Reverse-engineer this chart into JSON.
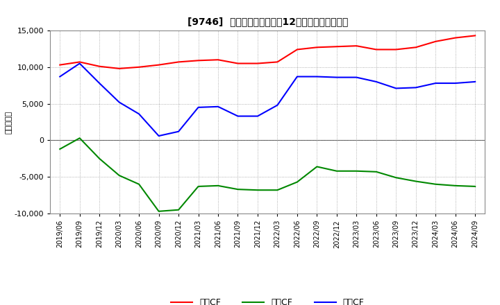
{
  "title": "[9746]  キャッシュフローの12か月移動合計の推移",
  "ylabel": "（百万円）",
  "ylim": [
    -10000,
    15000
  ],
  "yticks": [
    -10000,
    -5000,
    0,
    5000,
    10000,
    15000
  ],
  "background_color": "#ffffff",
  "grid_color": "#999999",
  "x_labels": [
    "2019/06",
    "2019/09",
    "2019/12",
    "2020/03",
    "2020/06",
    "2020/09",
    "2020/12",
    "2021/03",
    "2021/06",
    "2021/09",
    "2021/12",
    "2022/03",
    "2022/06",
    "2022/09",
    "2022/12",
    "2023/03",
    "2023/06",
    "2023/09",
    "2023/12",
    "2024/03",
    "2024/06",
    "2024/09"
  ],
  "series_order": [
    "営業CF",
    "投資CF",
    "フリCF"
  ],
  "series": {
    "営業CF": {
      "color": "#ff0000",
      "values": [
        10300,
        10700,
        10100,
        9800,
        10000,
        10300,
        10700,
        10900,
        11000,
        10500,
        10500,
        10700,
        12400,
        12700,
        12800,
        12900,
        12400,
        12400,
        12700,
        13500,
        14000,
        14300
      ]
    },
    "投資CF": {
      "color": "#008800",
      "values": [
        -1200,
        300,
        -2500,
        -4800,
        -6000,
        -9700,
        -9500,
        -6300,
        -6200,
        -6700,
        -6800,
        -6800,
        -5700,
        -3600,
        -4200,
        -4200,
        -4300,
        -5100,
        -5600,
        -6000,
        -6200,
        -6300
      ]
    },
    "フリCF": {
      "color": "#0000ff",
      "values": [
        8700,
        10500,
        7800,
        5200,
        3600,
        600,
        1200,
        4500,
        4600,
        3300,
        3300,
        4800,
        8700,
        8700,
        8600,
        8600,
        8000,
        7100,
        7200,
        7800,
        7800,
        8000
      ]
    }
  }
}
